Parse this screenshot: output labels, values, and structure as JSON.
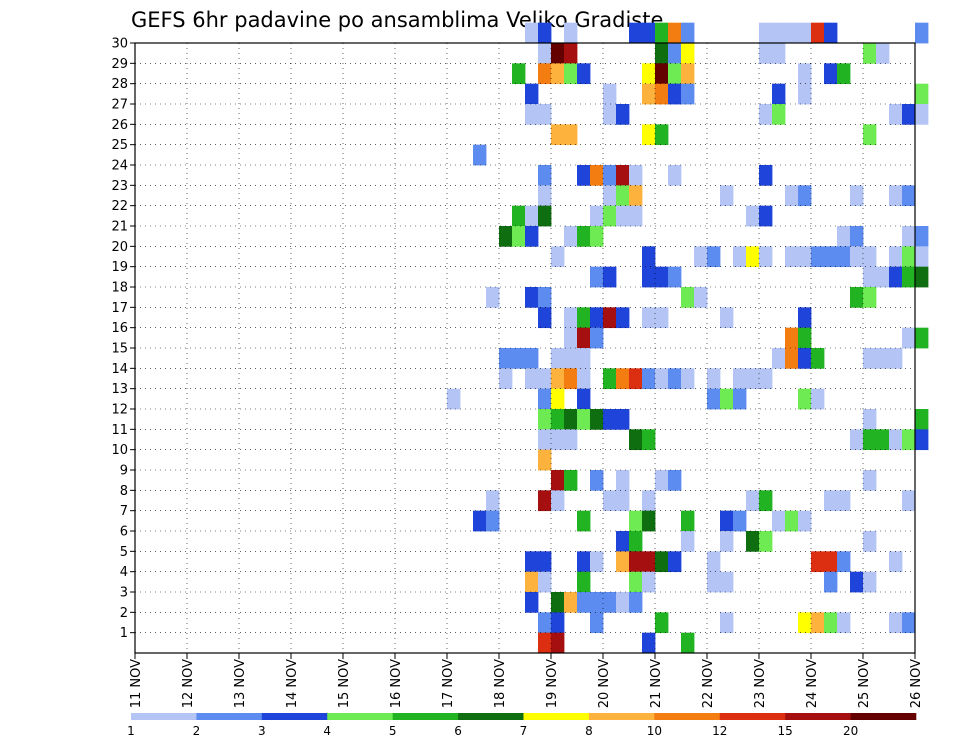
{
  "chart_data": {
    "type": "heatmap",
    "title": "GEFS 6hr padavine po ansamblima Veliko Gradiste",
    "xlabel": "",
    "ylabel": "",
    "x_ticks": [
      "11 NOV",
      "12 NOV",
      "13 NOV",
      "14 NOV",
      "15 NOV",
      "16 NOV",
      "17 NOV",
      "18 NOV",
      "19 NOV",
      "20 NOV",
      "21 NOV",
      "22 NOV",
      "23 NOV",
      "24 NOV",
      "25 NOV",
      "26 NOV"
    ],
    "y_ticks": [
      "1",
      "2",
      "3",
      "4",
      "5",
      "6",
      "7",
      "8",
      "9",
      "10",
      "11",
      "12",
      "13",
      "14",
      "15",
      "16",
      "17",
      "18",
      "19",
      "20",
      "21",
      "22",
      "23",
      "24",
      "25",
      "26",
      "27",
      "28",
      "29",
      "30"
    ],
    "xlim": [
      0,
      60
    ],
    "ylim": [
      0,
      30
    ],
    "legend": {
      "labels": [
        "1",
        "2",
        "3",
        "4",
        "5",
        "6",
        "7",
        "8",
        "10",
        "12",
        "15",
        "20"
      ],
      "colors": [
        "#b4c5f5",
        "#5c8cef",
        "#1f44d9",
        "#6eeb52",
        "#22b322",
        "#0f6e0f",
        "#ffff00",
        "#fdb23d",
        "#f47d12",
        "#dc2f12",
        "#a50f0f",
        "#640000"
      ]
    },
    "cells": [
      [
        30,
        30,
        1
      ],
      [
        30,
        31,
        3
      ],
      [
        30,
        33,
        1
      ],
      [
        30,
        38,
        3
      ],
      [
        30,
        39,
        3
      ],
      [
        30,
        40,
        5
      ],
      [
        30,
        41,
        9
      ],
      [
        30,
        42,
        2
      ],
      [
        30,
        48,
        1
      ],
      [
        30,
        49,
        1
      ],
      [
        30,
        50,
        1
      ],
      [
        30,
        51,
        1
      ],
      [
        30,
        52,
        10
      ],
      [
        30,
        53,
        3
      ],
      [
        30,
        60,
        2
      ],
      [
        29,
        31,
        1
      ],
      [
        29,
        32,
        12
      ],
      [
        29,
        33,
        11
      ],
      [
        29,
        40,
        6
      ],
      [
        29,
        41,
        2
      ],
      [
        29,
        42,
        7
      ],
      [
        29,
        48,
        1
      ],
      [
        29,
        49,
        1
      ],
      [
        29,
        56,
        4
      ],
      [
        29,
        57,
        1
      ],
      [
        28,
        29,
        5
      ],
      [
        28,
        31,
        9
      ],
      [
        28,
        32,
        8
      ],
      [
        28,
        33,
        4
      ],
      [
        28,
        34,
        3
      ],
      [
        28,
        39,
        7
      ],
      [
        28,
        40,
        12
      ],
      [
        28,
        41,
        4
      ],
      [
        28,
        42,
        8
      ],
      [
        28,
        51,
        1
      ],
      [
        28,
        53,
        3
      ],
      [
        28,
        54,
        5
      ],
      [
        27,
        30,
        3
      ],
      [
        27,
        36,
        1
      ],
      [
        27,
        39,
        8
      ],
      [
        27,
        40,
        9
      ],
      [
        27,
        41,
        3
      ],
      [
        27,
        42,
        2
      ],
      [
        27,
        49,
        3
      ],
      [
        27,
        51,
        1
      ],
      [
        27,
        60,
        4
      ],
      [
        26,
        30,
        1
      ],
      [
        26,
        31,
        1
      ],
      [
        26,
        36,
        1
      ],
      [
        26,
        37,
        3
      ],
      [
        26,
        48,
        1
      ],
      [
        26,
        49,
        4
      ],
      [
        26,
        58,
        1
      ],
      [
        26,
        59,
        3
      ],
      [
        26,
        60,
        1
      ],
      [
        25,
        32,
        8
      ],
      [
        25,
        33,
        8
      ],
      [
        25,
        39,
        7
      ],
      [
        25,
        40,
        5
      ],
      [
        25,
        56,
        4
      ],
      [
        24,
        26,
        2
      ],
      [
        23,
        31,
        2
      ],
      [
        23,
        34,
        3
      ],
      [
        23,
        35,
        9
      ],
      [
        23,
        36,
        2
      ],
      [
        23,
        37,
        11
      ],
      [
        23,
        38,
        1
      ],
      [
        23,
        41,
        1
      ],
      [
        23,
        48,
        3
      ],
      [
        22,
        31,
        1
      ],
      [
        22,
        36,
        1
      ],
      [
        22,
        37,
        4
      ],
      [
        22,
        38,
        8
      ],
      [
        22,
        45,
        1
      ],
      [
        22,
        50,
        1
      ],
      [
        22,
        51,
        2
      ],
      [
        22,
        55,
        1
      ],
      [
        22,
        58,
        1
      ],
      [
        22,
        59,
        2
      ],
      [
        21,
        29,
        5
      ],
      [
        21,
        30,
        1
      ],
      [
        21,
        31,
        6
      ],
      [
        21,
        35,
        1
      ],
      [
        21,
        36,
        4
      ],
      [
        21,
        37,
        1
      ],
      [
        21,
        38,
        1
      ],
      [
        21,
        47,
        1
      ],
      [
        21,
        48,
        3
      ],
      [
        20,
        28,
        6
      ],
      [
        20,
        29,
        4
      ],
      [
        20,
        30,
        3
      ],
      [
        20,
        33,
        1
      ],
      [
        20,
        34,
        5
      ],
      [
        20,
        35,
        4
      ],
      [
        20,
        54,
        1
      ],
      [
        20,
        55,
        2
      ],
      [
        20,
        59,
        1
      ],
      [
        20,
        60,
        2
      ],
      [
        19,
        32,
        1
      ],
      [
        19,
        39,
        3
      ],
      [
        19,
        43,
        1
      ],
      [
        19,
        44,
        2
      ],
      [
        19,
        46,
        1
      ],
      [
        19,
        47,
        7
      ],
      [
        19,
        48,
        1
      ],
      [
        19,
        50,
        1
      ],
      [
        19,
        51,
        1
      ],
      [
        19,
        52,
        2
      ],
      [
        19,
        53,
        2
      ],
      [
        19,
        54,
        2
      ],
      [
        19,
        55,
        1
      ],
      [
        19,
        56,
        1
      ],
      [
        19,
        58,
        1
      ],
      [
        19,
        59,
        4
      ],
      [
        19,
        60,
        1
      ],
      [
        18,
        35,
        2
      ],
      [
        18,
        36,
        3
      ],
      [
        18,
        39,
        3
      ],
      [
        18,
        40,
        3
      ],
      [
        18,
        41,
        2
      ],
      [
        18,
        56,
        1
      ],
      [
        18,
        57,
        1
      ],
      [
        18,
        58,
        3
      ],
      [
        18,
        59,
        5
      ],
      [
        18,
        60,
        6
      ],
      [
        17,
        27,
        1
      ],
      [
        17,
        30,
        3
      ],
      [
        17,
        31,
        2
      ],
      [
        17,
        42,
        4
      ],
      [
        17,
        43,
        1
      ],
      [
        17,
        55,
        5
      ],
      [
        17,
        56,
        4
      ],
      [
        16,
        31,
        3
      ],
      [
        16,
        33,
        1
      ],
      [
        16,
        34,
        5
      ],
      [
        16,
        35,
        3
      ],
      [
        16,
        36,
        11
      ],
      [
        16,
        37,
        3
      ],
      [
        16,
        39,
        1
      ],
      [
        16,
        40,
        1
      ],
      [
        16,
        45,
        1
      ],
      [
        16,
        51,
        3
      ],
      [
        15,
        33,
        1
      ],
      [
        15,
        34,
        11
      ],
      [
        15,
        35,
        2
      ],
      [
        15,
        50,
        9
      ],
      [
        15,
        51,
        5
      ],
      [
        15,
        59,
        1
      ],
      [
        15,
        60,
        5
      ],
      [
        14,
        28,
        2
      ],
      [
        14,
        29,
        2
      ],
      [
        14,
        30,
        2
      ],
      [
        14,
        32,
        1
      ],
      [
        14,
        33,
        1
      ],
      [
        14,
        34,
        1
      ],
      [
        14,
        49,
        1
      ],
      [
        14,
        50,
        9
      ],
      [
        14,
        51,
        3
      ],
      [
        14,
        52,
        5
      ],
      [
        14,
        56,
        1
      ],
      [
        14,
        57,
        1
      ],
      [
        14,
        58,
        1
      ],
      [
        13,
        28,
        1
      ],
      [
        13,
        30,
        1
      ],
      [
        13,
        31,
        1
      ],
      [
        13,
        32,
        8
      ],
      [
        13,
        33,
        9
      ],
      [
        13,
        34,
        1
      ],
      [
        13,
        36,
        5
      ],
      [
        13,
        37,
        9
      ],
      [
        13,
        38,
        10
      ],
      [
        13,
        39,
        2
      ],
      [
        13,
        40,
        1
      ],
      [
        13,
        41,
        2
      ],
      [
        13,
        42,
        1
      ],
      [
        13,
        44,
        1
      ],
      [
        13,
        46,
        1
      ],
      [
        13,
        47,
        1
      ],
      [
        13,
        48,
        1
      ],
      [
        12,
        24,
        1
      ],
      [
        12,
        31,
        2
      ],
      [
        12,
        32,
        7
      ],
      [
        12,
        34,
        3
      ],
      [
        12,
        44,
        2
      ],
      [
        12,
        45,
        4
      ],
      [
        12,
        46,
        2
      ],
      [
        12,
        51,
        4
      ],
      [
        12,
        52,
        1
      ],
      [
        11,
        31,
        4
      ],
      [
        11,
        32,
        5
      ],
      [
        11,
        33,
        6
      ],
      [
        11,
        34,
        4
      ],
      [
        11,
        35,
        6
      ],
      [
        11,
        36,
        3
      ],
      [
        11,
        37,
        3
      ],
      [
        11,
        56,
        1
      ],
      [
        11,
        60,
        5
      ],
      [
        10,
        31,
        1
      ],
      [
        10,
        32,
        1
      ],
      [
        10,
        33,
        1
      ],
      [
        10,
        38,
        6
      ],
      [
        10,
        39,
        5
      ],
      [
        10,
        55,
        1
      ],
      [
        10,
        56,
        5
      ],
      [
        10,
        57,
        5
      ],
      [
        10,
        58,
        1
      ],
      [
        10,
        59,
        4
      ],
      [
        10,
        60,
        3
      ],
      [
        9,
        31,
        8
      ],
      [
        8,
        32,
        11
      ],
      [
        8,
        33,
        5
      ],
      [
        8,
        35,
        2
      ],
      [
        8,
        37,
        1
      ],
      [
        8,
        40,
        1
      ],
      [
        8,
        41,
        2
      ],
      [
        8,
        56,
        1
      ],
      [
        7,
        27,
        1
      ],
      [
        7,
        31,
        11
      ],
      [
        7,
        32,
        1
      ],
      [
        7,
        36,
        1
      ],
      [
        7,
        37,
        1
      ],
      [
        7,
        39,
        1
      ],
      [
        7,
        47,
        1
      ],
      [
        7,
        48,
        5
      ],
      [
        7,
        53,
        1
      ],
      [
        7,
        54,
        1
      ],
      [
        7,
        59,
        1
      ],
      [
        6,
        26,
        3
      ],
      [
        6,
        27,
        2
      ],
      [
        6,
        34,
        5
      ],
      [
        6,
        38,
        4
      ],
      [
        6,
        39,
        6
      ],
      [
        6,
        42,
        5
      ],
      [
        6,
        45,
        3
      ],
      [
        6,
        46,
        2
      ],
      [
        6,
        49,
        1
      ],
      [
        6,
        50,
        4
      ],
      [
        6,
        51,
        1
      ],
      [
        5,
        37,
        3
      ],
      [
        5,
        38,
        5
      ],
      [
        5,
        42,
        1
      ],
      [
        5,
        45,
        1
      ],
      [
        5,
        47,
        6
      ],
      [
        5,
        48,
        4
      ],
      [
        5,
        56,
        1
      ],
      [
        4,
        30,
        3
      ],
      [
        4,
        31,
        3
      ],
      [
        4,
        34,
        3
      ],
      [
        4,
        35,
        1
      ],
      [
        4,
        37,
        8
      ],
      [
        4,
        38,
        11
      ],
      [
        4,
        39,
        11
      ],
      [
        4,
        40,
        6
      ],
      [
        4,
        41,
        3
      ],
      [
        4,
        44,
        1
      ],
      [
        4,
        52,
        10
      ],
      [
        4,
        53,
        10
      ],
      [
        4,
        54,
        2
      ],
      [
        4,
        58,
        1
      ],
      [
        3,
        30,
        8
      ],
      [
        3,
        31,
        1
      ],
      [
        3,
        34,
        5
      ],
      [
        3,
        38,
        4
      ],
      [
        3,
        39,
        1
      ],
      [
        3,
        44,
        1
      ],
      [
        3,
        45,
        1
      ],
      [
        3,
        53,
        2
      ],
      [
        3,
        55,
        3
      ],
      [
        3,
        56,
        1
      ],
      [
        2,
        30,
        3
      ],
      [
        2,
        32,
        6
      ],
      [
        2,
        33,
        8
      ],
      [
        2,
        34,
        2
      ],
      [
        2,
        35,
        2
      ],
      [
        2,
        36,
        2
      ],
      [
        2,
        37,
        1
      ],
      [
        2,
        38,
        2
      ],
      [
        1,
        31,
        2
      ],
      [
        1,
        32,
        3
      ],
      [
        1,
        35,
        2
      ],
      [
        1,
        40,
        5
      ],
      [
        1,
        45,
        1
      ],
      [
        1,
        51,
        7
      ],
      [
        1,
        52,
        8
      ],
      [
        1,
        53,
        4
      ],
      [
        1,
        54,
        1
      ],
      [
        1,
        58,
        1
      ],
      [
        1,
        59,
        2
      ],
      [
        0,
        31,
        10
      ],
      [
        0,
        32,
        11
      ],
      [
        0,
        39,
        3
      ],
      [
        0,
        42,
        5
      ]
    ]
  }
}
